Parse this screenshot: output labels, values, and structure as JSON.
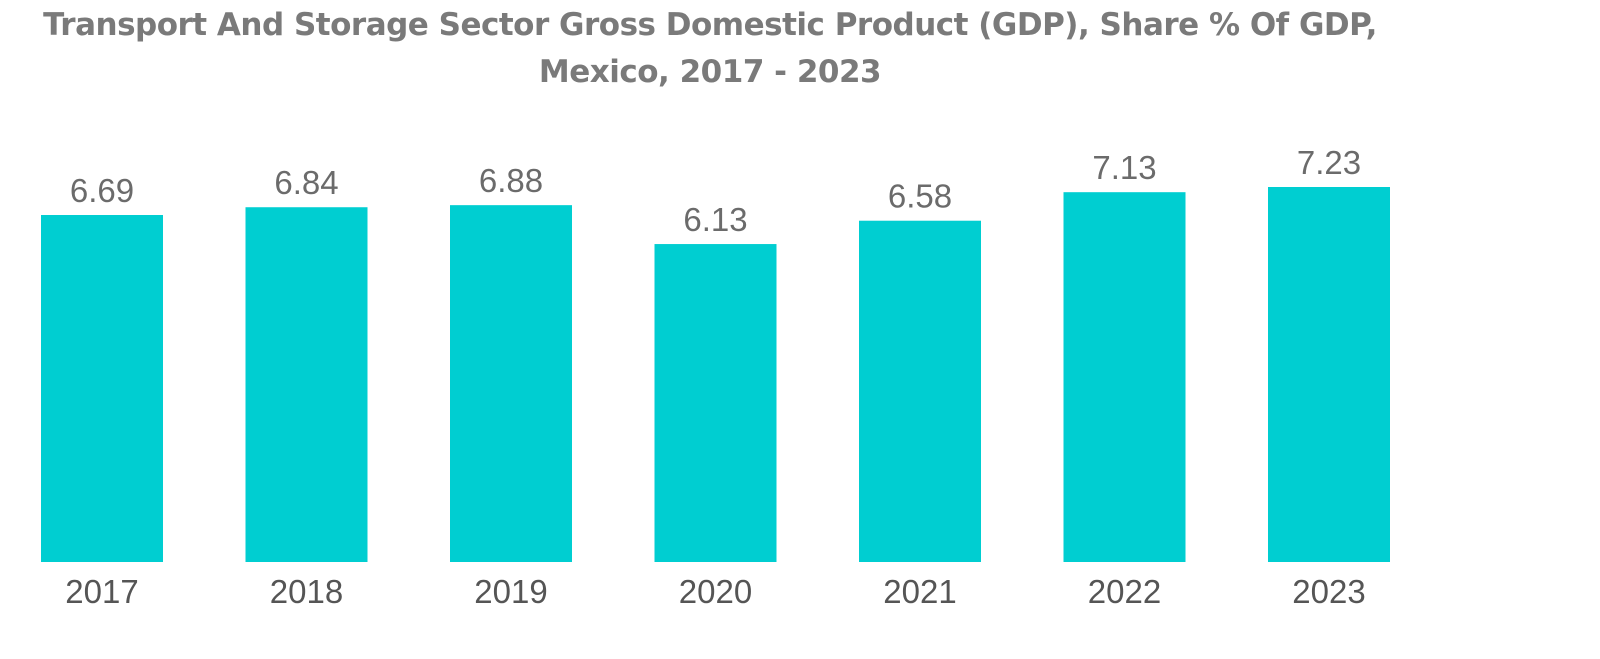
{
  "chart_data": {
    "type": "bar",
    "title": "Transport And Storage Sector Gross Domestic Product (GDP), Share % Of GDP, Mexico, 2017 - 2023",
    "categories": [
      "2017",
      "2018",
      "2019",
      "2020",
      "2021",
      "2022",
      "2023"
    ],
    "values": [
      6.69,
      6.84,
      6.88,
      6.13,
      6.58,
      7.13,
      7.23
    ],
    "value_labels": [
      "6.69",
      "6.84",
      "6.88",
      "6.13",
      "6.58",
      "7.13",
      "7.23"
    ],
    "xlabel": "",
    "ylabel": "",
    "ylim": [
      0,
      7.23
    ],
    "grid": false,
    "legend": "none",
    "bar_color": "#00CED1"
  }
}
